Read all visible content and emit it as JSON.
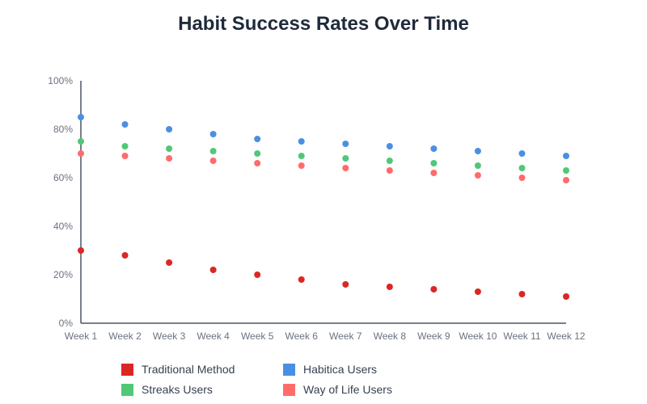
{
  "chart_data": {
    "type": "scatter",
    "title": "Habit Success Rates Over Time",
    "xlabel": "",
    "ylabel": "",
    "categories": [
      "Week 1",
      "Week 2",
      "Week 3",
      "Week 4",
      "Week 5",
      "Week 6",
      "Week 7",
      "Week 8",
      "Week 9",
      "Week 10",
      "Week 11",
      "Week 12"
    ],
    "ylim": [
      0,
      100
    ],
    "yticks": [
      0,
      20,
      40,
      60,
      80,
      100
    ],
    "ytick_labels": [
      "0%",
      "20%",
      "40%",
      "60%",
      "80%",
      "100%"
    ],
    "grid": false,
    "legend_position": "bottom",
    "series": [
      {
        "name": "Traditional Method",
        "color": "#dc2626",
        "values": [
          30,
          28,
          25,
          22,
          20,
          18,
          16,
          15,
          14,
          13,
          12,
          11
        ]
      },
      {
        "name": "Habitica Users",
        "color": "#4a90e2",
        "values": [
          85,
          82,
          80,
          78,
          76,
          75,
          74,
          73,
          72,
          71,
          70,
          69
        ]
      },
      {
        "name": "Streaks Users",
        "color": "#50c878",
        "values": [
          75,
          73,
          72,
          71,
          70,
          69,
          68,
          67,
          66,
          65,
          64,
          63
        ]
      },
      {
        "name": "Way of Life Users",
        "color": "#ff6b6b",
        "values": [
          70,
          69,
          68,
          67,
          66,
          65,
          64,
          63,
          62,
          61,
          60,
          59
        ]
      }
    ]
  }
}
